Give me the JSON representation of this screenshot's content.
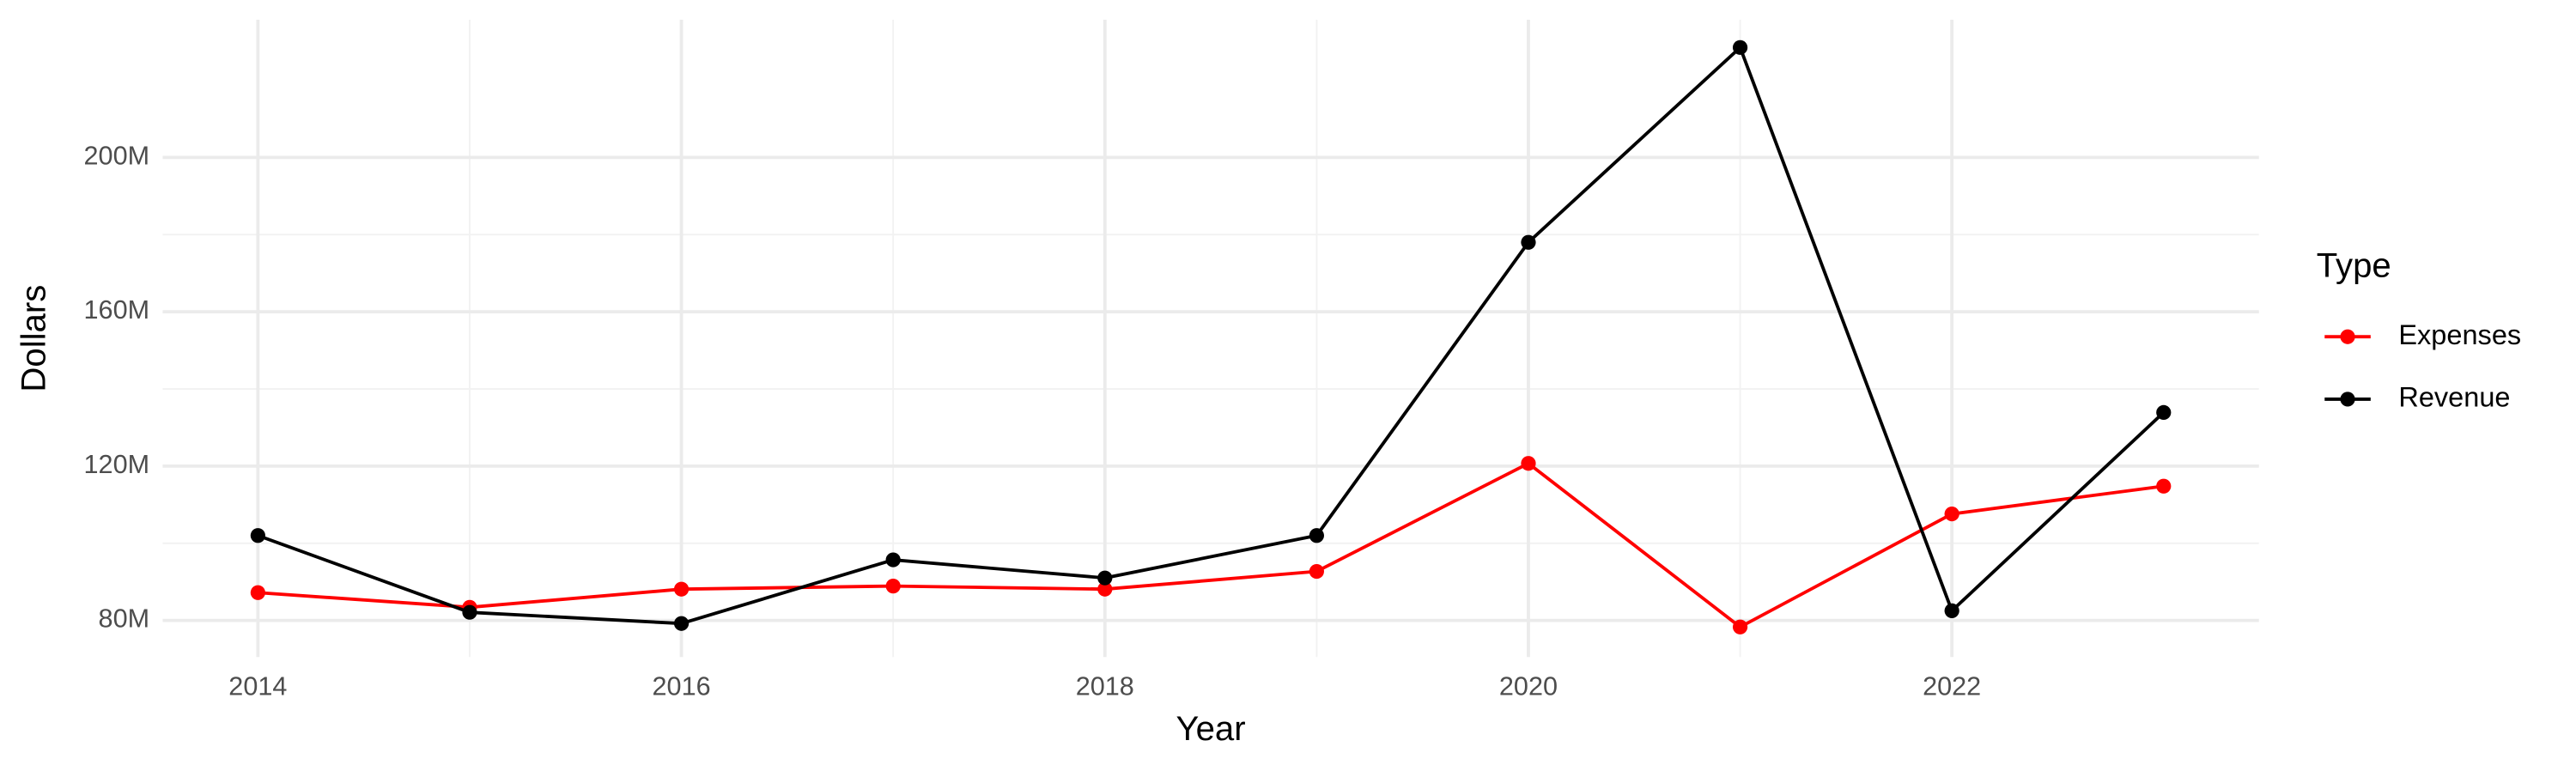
{
  "chart_data": {
    "type": "line",
    "x_label": "Year",
    "y_label": "Dollars",
    "legend_title": "Type",
    "x": [
      2014,
      2015,
      2016,
      2017,
      2018,
      2019,
      2020,
      2021,
      2022,
      2023
    ],
    "series": [
      {
        "name": "Expenses",
        "color": "#ff0000",
        "values": [
          87200000,
          83400000,
          88100000,
          88900000,
          88100000,
          92700000,
          120700000,
          78300000,
          107600000,
          114800000
        ]
      },
      {
        "name": "Revenue",
        "color": "#000000",
        "values": [
          102000000,
          82100000,
          79200000,
          95700000,
          91000000,
          102000000,
          178000000,
          228500000,
          82500000,
          133900000
        ]
      }
    ],
    "xlim": [
      2013.55,
      2023.45
    ],
    "xticks": [
      2014,
      2016,
      2018,
      2020,
      2022
    ],
    "ylim": [
      70500000,
      235700000
    ],
    "yticks": [
      {
        "value": 80000000,
        "label": "80M"
      },
      {
        "value": 120000000,
        "label": "120M"
      },
      {
        "value": 160000000,
        "label": "160M"
      },
      {
        "value": 200000000,
        "label": "200M"
      }
    ],
    "grid": true,
    "legend_position": "right"
  }
}
